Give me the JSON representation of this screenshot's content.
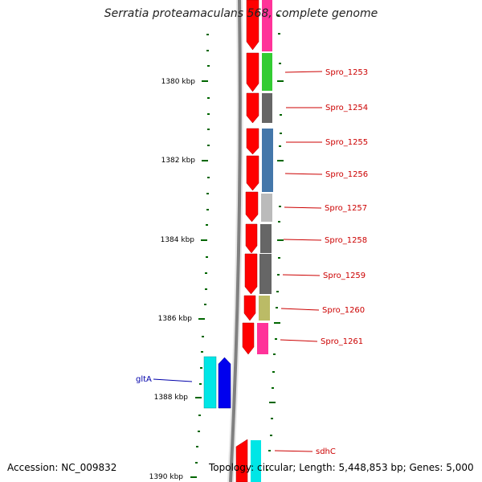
{
  "header": {
    "title": "Serratia proteamaculans 568, complete genome"
  },
  "footer": {
    "accession": "Accession: NC_009832",
    "topology": "Topology: circular; Length: 5,448,853 bp; Genes: 5,000"
  },
  "scale_ticks": [
    {
      "label": "1380 kbp"
    },
    {
      "label": "1382 kbp"
    },
    {
      "label": "1384 kbp"
    },
    {
      "label": "1386 kbp"
    },
    {
      "label": "1388 kbp"
    },
    {
      "label": "1390 kbp"
    }
  ],
  "gene_labels": [
    {
      "text": "Spro_1253",
      "color": "#cc0000"
    },
    {
      "text": "Spro_1254",
      "color": "#cc0000"
    },
    {
      "text": "Spro_1255",
      "color": "#cc0000"
    },
    {
      "text": "Spro_1256",
      "color": "#cc0000"
    },
    {
      "text": "Spro_1257",
      "color": "#cc0000"
    },
    {
      "text": "Spro_1258",
      "color": "#cc0000"
    },
    {
      "text": "Spro_1259",
      "color": "#cc0000"
    },
    {
      "text": "Spro_1260",
      "color": "#cc0000"
    },
    {
      "text": "Spro_1261",
      "color": "#cc0000"
    },
    {
      "text": "gltA",
      "color": "#0000aa"
    },
    {
      "text": "sdhC",
      "color": "#cc0000"
    }
  ],
  "colors": {
    "backbone": "#808080",
    "cds": "#ff0000",
    "tick": "#006600",
    "cog_bars": [
      "#ff3399",
      "#33cc33",
      "#666666",
      "#4477aa",
      "#bbbbbb",
      "#666666",
      "#666666",
      "#bbbb66",
      "#ff3399",
      "#00e6e6"
    ],
    "gltA_cog": "#00e6e6",
    "gltA_cds": "#0000ee"
  }
}
